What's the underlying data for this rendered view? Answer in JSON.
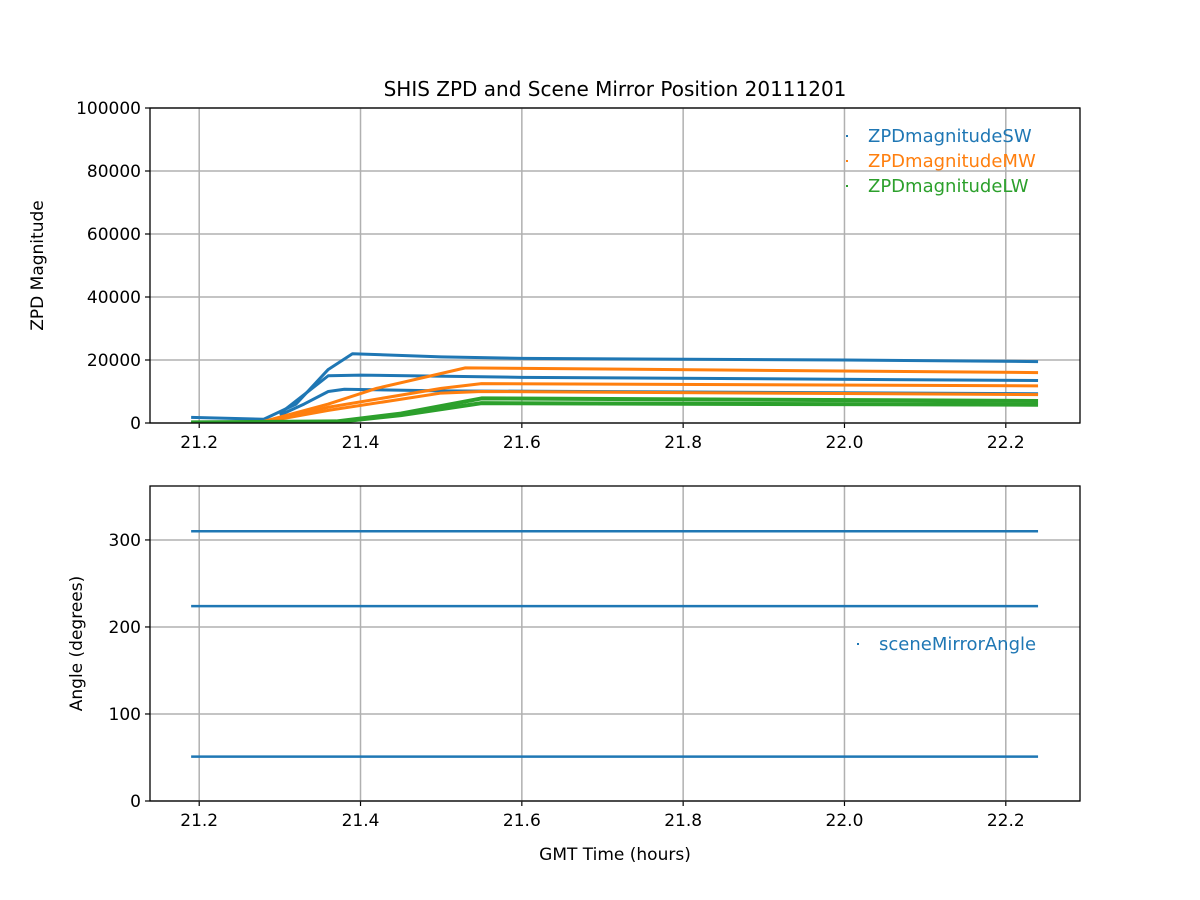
{
  "chart_data": [
    {
      "type": "scatter",
      "title": "SHIS ZPD and Scene Mirror Position 20111201",
      "xlabel": "",
      "ylabel": "ZPD Magnitude",
      "xlim": [
        21.139,
        22.292
      ],
      "ylim": [
        0,
        100000
      ],
      "xticks": [
        21.2,
        21.4,
        21.6,
        21.8,
        22.0,
        22.2
      ],
      "xtick_labels": [
        "21.2",
        "21.4",
        "21.6",
        "21.8",
        "22.0",
        "22.2"
      ],
      "yticks": [
        0,
        20000,
        40000,
        60000,
        80000,
        100000
      ],
      "ytick_labels": [
        "0",
        "20000",
        "40000",
        "60000",
        "80000",
        "100000"
      ],
      "grid": true,
      "legend_position": "top-right",
      "legend": [
        {
          "name": "ZPDmagnitudeSW",
          "color": "#1f77b4"
        },
        {
          "name": "ZPDmagnitudeMW",
          "color": "#ff7f0e"
        },
        {
          "name": "ZPDmagnitudeLW",
          "color": "#2ca02c"
        }
      ],
      "series": [
        {
          "name": "ZPDmagnitudeSW",
          "color": "#1f77b4",
          "width": 3,
          "x": [
            21.19,
            21.28,
            21.32,
            21.36,
            21.39,
            21.5,
            21.6,
            22.0,
            22.24
          ],
          "y": [
            1800,
            1200,
            6000,
            17000,
            22000,
            21000,
            20500,
            20000,
            19500
          ]
        },
        {
          "name": "ZPDmagnitudeSW",
          "color": "#1f77b4",
          "width": 3,
          "x": [
            21.3,
            21.33,
            21.36,
            21.4,
            21.6,
            22.24
          ],
          "y": [
            3000,
            9000,
            15000,
            15200,
            14500,
            13500
          ]
        },
        {
          "name": "ZPDmagnitudeSW",
          "color": "#1f77b4",
          "width": 3,
          "x": [
            21.3,
            21.33,
            21.36,
            21.38,
            21.5,
            22.24
          ],
          "y": [
            2500,
            6000,
            10000,
            10700,
            10200,
            9300
          ]
        },
        {
          "name": "ZPDmagnitudeMW",
          "color": "#ff7f0e",
          "width": 3,
          "x": [
            21.28,
            21.36,
            21.42,
            21.53,
            22.24
          ],
          "y": [
            500,
            6000,
            11000,
            17500,
            16000
          ]
        },
        {
          "name": "ZPDmagnitudeMW",
          "color": "#ff7f0e",
          "width": 3,
          "x": [
            21.28,
            21.36,
            21.5,
            21.55,
            22.24
          ],
          "y": [
            400,
            5000,
            11000,
            12500,
            11800
          ]
        },
        {
          "name": "ZPDmagnitudeMW",
          "color": "#ff7f0e",
          "width": 3,
          "x": [
            21.28,
            21.36,
            21.5,
            21.55,
            22.24
          ],
          "y": [
            300,
            4000,
            9500,
            10000,
            9000
          ]
        },
        {
          "name": "ZPDmagnitudeLW",
          "color": "#2ca02c",
          "width": 4,
          "x": [
            21.19,
            21.37,
            21.45,
            21.55,
            22.24
          ],
          "y": [
            200,
            500,
            3000,
            7800,
            7000
          ]
        },
        {
          "name": "ZPDmagnitudeLW",
          "color": "#2ca02c",
          "width": 4,
          "x": [
            21.19,
            21.37,
            21.45,
            21.55,
            22.24
          ],
          "y": [
            100,
            300,
            2500,
            6300,
            5800
          ]
        }
      ]
    },
    {
      "type": "scatter",
      "title": "",
      "xlabel": "GMT Time (hours)",
      "ylabel": "Angle (degrees)",
      "xlim": [
        21.139,
        22.292
      ],
      "ylim": [
        0,
        362
      ],
      "xticks": [
        21.2,
        21.4,
        21.6,
        21.8,
        22.0,
        22.2
      ],
      "xtick_labels": [
        "21.2",
        "21.4",
        "21.6",
        "21.8",
        "22.0",
        "22.2"
      ],
      "yticks": [
        0,
        100,
        200,
        300
      ],
      "ytick_labels": [
        "0",
        "100",
        "200",
        "300"
      ],
      "grid": true,
      "legend_position": "center-right",
      "legend": [
        {
          "name": "sceneMirrorAngle",
          "color": "#1f77b4"
        }
      ],
      "series": [
        {
          "name": "sceneMirrorAngle",
          "color": "#1f77b4",
          "width": 2.5,
          "x": [
            21.19,
            22.24
          ],
          "y": [
            310,
            310
          ]
        },
        {
          "name": "sceneMirrorAngle",
          "color": "#1f77b4",
          "width": 2.5,
          "x": [
            21.19,
            22.24
          ],
          "y": [
            224,
            224
          ]
        },
        {
          "name": "sceneMirrorAngle",
          "color": "#1f77b4",
          "width": 2.5,
          "x": [
            21.19,
            22.24
          ],
          "y": [
            51,
            51
          ]
        }
      ]
    }
  ]
}
